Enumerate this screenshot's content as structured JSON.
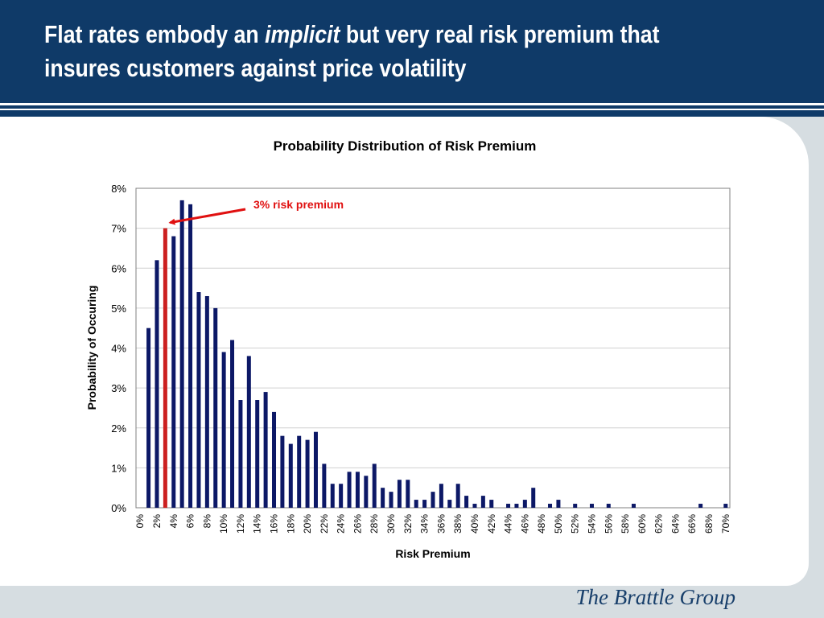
{
  "header": {
    "title_part1": "Flat rates embody an ",
    "title_emphasis": "implicit",
    "title_part2": " but very real risk premium that insures customers against price volatility"
  },
  "footer": {
    "brand": "The Brattle Group"
  },
  "colors": {
    "header_bg": "#0f3a68",
    "bar": "#0c1866",
    "highlight_bar": "#cc2020",
    "annotation": "#e01010",
    "frame": "#d6dde1"
  },
  "chart_data": {
    "type": "bar",
    "title": "Probability Distribution of Risk Premium",
    "xlabel": "Risk Premium",
    "ylabel": "Probability of Occuring",
    "ylim": [
      0,
      8
    ],
    "y_unit": "%",
    "y_ticks": [
      "0%",
      "1%",
      "2%",
      "3%",
      "4%",
      "5%",
      "6%",
      "7%",
      "8%"
    ],
    "x_tick_labels": [
      "0%",
      "2%",
      "4%",
      "6%",
      "8%",
      "10%",
      "12%",
      "14%",
      "16%",
      "18%",
      "20%",
      "22%",
      "24%",
      "26%",
      "28%",
      "30%",
      "32%",
      "34%",
      "36%",
      "38%",
      "40%",
      "42%",
      "44%",
      "46%",
      "48%",
      "50%",
      "52%",
      "54%",
      "56%",
      "58%",
      "60%",
      "62%",
      "64%",
      "66%",
      "68%",
      "70%"
    ],
    "categories": [
      0,
      1,
      2,
      3,
      4,
      5,
      6,
      7,
      8,
      9,
      10,
      11,
      12,
      13,
      14,
      15,
      16,
      17,
      18,
      19,
      20,
      21,
      22,
      23,
      24,
      25,
      26,
      27,
      28,
      29,
      30,
      31,
      32,
      33,
      34,
      35,
      36,
      37,
      38,
      39,
      40,
      41,
      42,
      43,
      44,
      45,
      46,
      47,
      48,
      49,
      50,
      51,
      52,
      53,
      54,
      55,
      56,
      57,
      58,
      59,
      60,
      61,
      62,
      63,
      64,
      65,
      66,
      67,
      68,
      69,
      70
    ],
    "values": [
      0,
      4.5,
      6.2,
      7.0,
      6.8,
      7.7,
      7.6,
      5.4,
      5.3,
      5.0,
      3.9,
      4.2,
      2.7,
      3.8,
      2.7,
      2.9,
      2.4,
      1.8,
      1.6,
      1.8,
      1.7,
      1.9,
      1.1,
      0.6,
      0.6,
      0.9,
      0.9,
      0.8,
      1.1,
      0.5,
      0.4,
      0.7,
      0.7,
      0.2,
      0.2,
      0.4,
      0.6,
      0.2,
      0.6,
      0.3,
      0.1,
      0.3,
      0.2,
      0,
      0.1,
      0.1,
      0.2,
      0.5,
      0,
      0.1,
      0.2,
      0,
      0.1,
      0,
      0.1,
      0,
      0.1,
      0,
      0,
      0.1,
      0,
      0,
      0,
      0,
      0,
      0,
      0,
      0.1,
      0,
      0,
      0.1
    ],
    "highlight_index": 3,
    "annotation": {
      "text": "3% risk premium",
      "target_index": 3
    },
    "grid": true,
    "legend": "none"
  }
}
